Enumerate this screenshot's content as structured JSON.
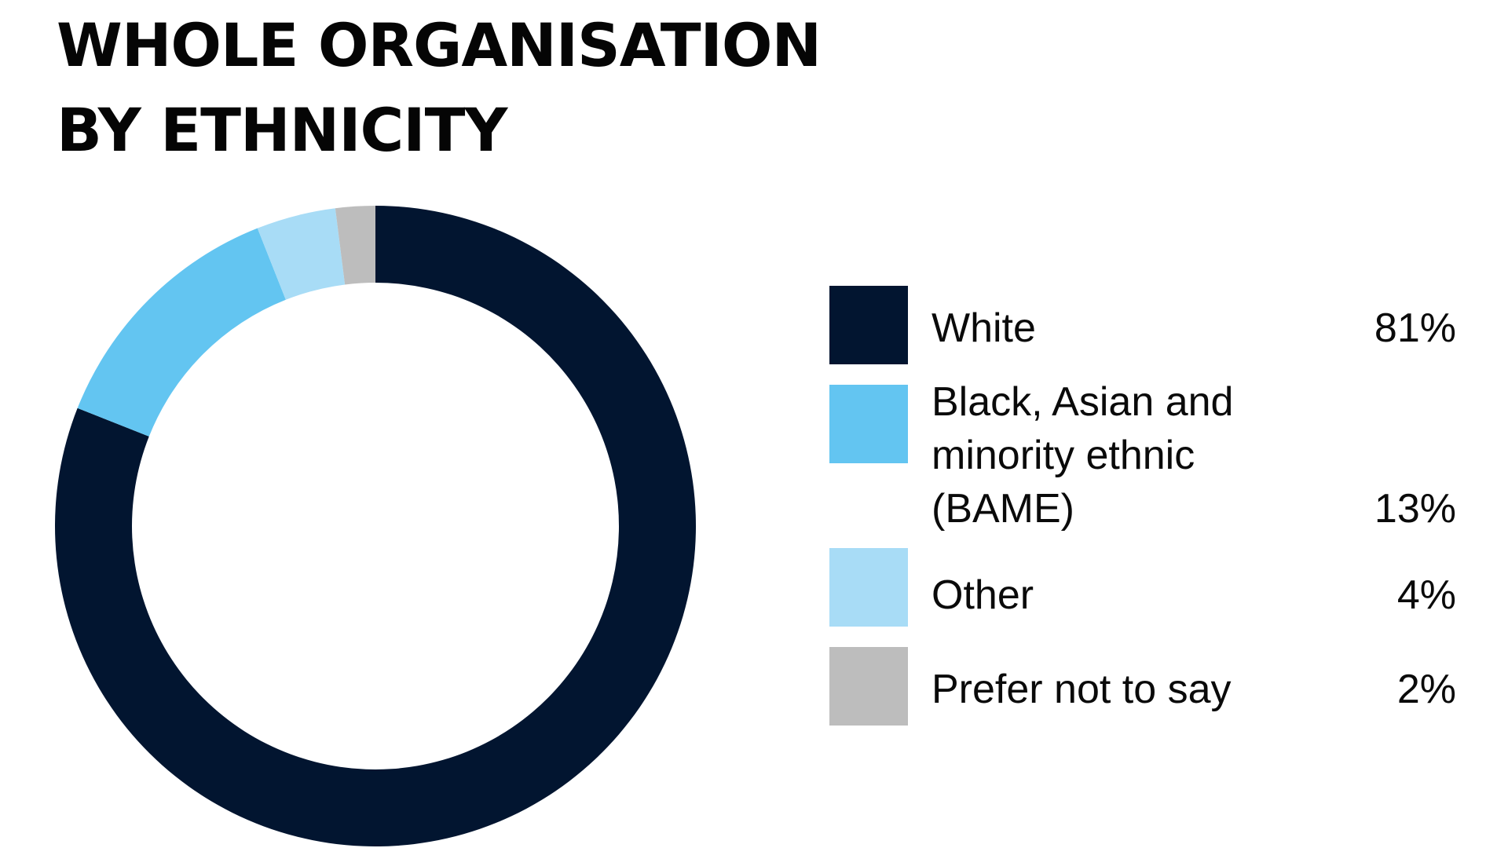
{
  "chart_data": {
    "type": "pie",
    "title_lines": [
      "WHOLE ORGANISATION",
      "BY ETHNICITY"
    ],
    "categories": [
      "White",
      "Black, Asian and minority ethnic (BAME)",
      "Other",
      "Prefer not to say"
    ],
    "label_lines": [
      [
        "White"
      ],
      [
        "Black, Asian and",
        "minority ethnic",
        "(BAME)"
      ],
      [
        "Other"
      ],
      [
        "Prefer not to say"
      ]
    ],
    "values": [
      81,
      13,
      4,
      2
    ],
    "value_labels": [
      "81%",
      "13%",
      "4%",
      "2%"
    ],
    "colors": [
      "#021530",
      "#63c5f1",
      "#a8dcf6",
      "#bdbdbd"
    ],
    "legend_position": "right"
  }
}
